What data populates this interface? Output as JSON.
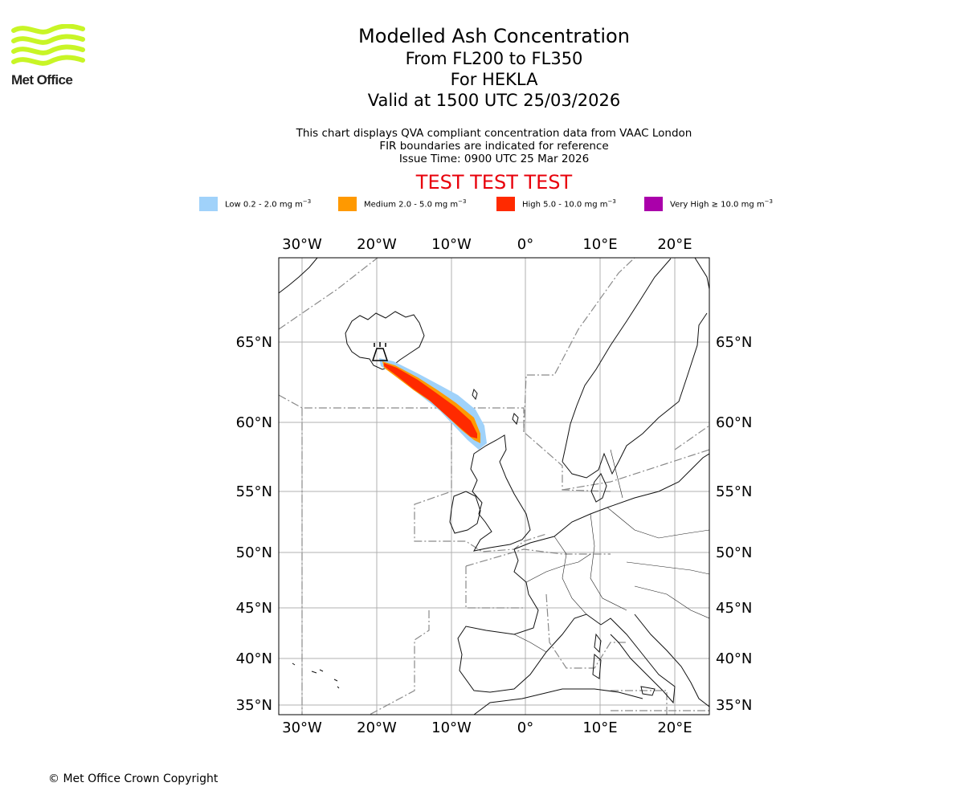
{
  "logo": {
    "text": "Met Office",
    "color": "#c8f526"
  },
  "header": {
    "title": "Modelled Ash Concentration",
    "levels": "From FL200 to FL350",
    "volcano": "For HEKLA",
    "valid": "Valid at 1500 UTC 25/03/2026",
    "note1": "This chart displays QVA compliant concentration data from VAAC London",
    "note2": "FIR boundaries are indicated for reference",
    "issue_time": "Issue Time: 0900 UTC 25 Mar 2026",
    "test_banner": "TEST TEST TEST"
  },
  "legend": [
    {
      "label": "Low 0.2 - 2.0 mg m",
      "exp": "−3",
      "color": "#a0d2fa"
    },
    {
      "label": "Medium 2.0 - 5.0 mg m",
      "exp": "−3",
      "color": "#ff9900"
    },
    {
      "label": "High 5.0 - 10.0 mg m",
      "exp": "−3",
      "color": "#ff2a00"
    },
    {
      "label": "Very High  ≥  10.0 mg m",
      "exp": "−3",
      "color": "#aa00aa"
    }
  ],
  "map": {
    "lon_ticks": [
      "30°W",
      "20°W",
      "10°W",
      "0°",
      "10°E",
      "20°E"
    ],
    "lat_ticks": [
      "65°N",
      "60°N",
      "55°N",
      "50°N",
      "45°N",
      "40°N",
      "35°N"
    ]
  },
  "footer": {
    "copyright": "© Met Office Crown Copyright"
  }
}
